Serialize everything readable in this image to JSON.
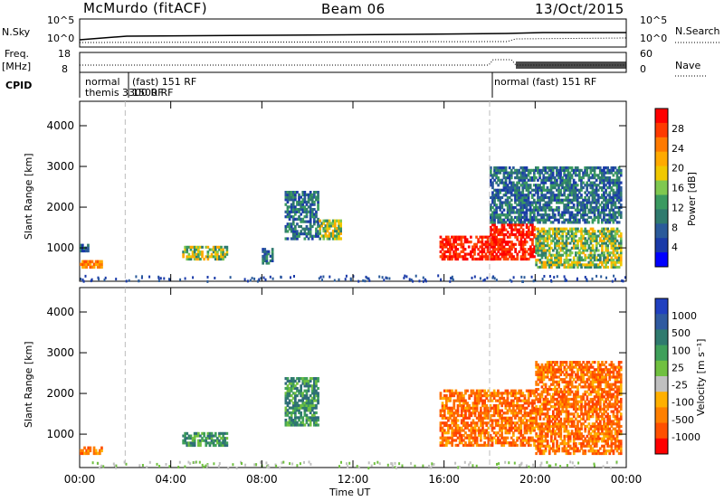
{
  "header": {
    "station": "McMurdo (fitACF)",
    "beam": "Beam 06",
    "date": "13/Oct/2015"
  },
  "top_panels": {
    "nsky_label": "N.Sky",
    "nsky_ticks": [
      "10^5",
      "10^0"
    ],
    "nsearch_label": "N.Search",
    "nsearch_ticks": [
      "10^5",
      "10^0"
    ],
    "freq_label": "Freq.",
    "freq_unit": "[MHz]",
    "freq_ticks": [
      "18",
      "8"
    ],
    "nave_label": "Nave",
    "nave_ticks": [
      "60",
      "0"
    ],
    "cpid_label": "CPID",
    "cpid_entries": [
      {
        "text": "normal",
        "row": 1,
        "at_hour": 0.1
      },
      {
        "text": "(fast) 151 RF",
        "row": 1,
        "at_hour": 2.1
      },
      {
        "text": "themis 3300 RF",
        "row": 2,
        "at_hour": 0.1
      },
      {
        "text": "1500 RF",
        "row": 2,
        "at_hour": 2.1
      },
      {
        "text": "normal (fast) 151 RF",
        "row": 1,
        "at_hour": 18.1
      }
    ]
  },
  "chart_data": [
    {
      "type": "heatmap",
      "title": "Power",
      "xlabel": "",
      "ylabel": "Slant Range [km]",
      "xlim": [
        0,
        24
      ],
      "ylim": [
        180,
        4600
      ],
      "x_ticks": [
        "00:00",
        "04:00",
        "08:00",
        "12:00",
        "16:00",
        "20:00",
        "00:00"
      ],
      "y_ticks": [
        "1000",
        "2000",
        "3000",
        "4000"
      ],
      "colorbar": {
        "label": "Power [dB]",
        "ticks": [
          "28",
          "24",
          "20",
          "16",
          "12",
          "8",
          "4"
        ],
        "colors": [
          "#ff0000",
          "#ff3a00",
          "#ff7a00",
          "#ffaa00",
          "#f0c800",
          "#7fc850",
          "#3a9a60",
          "#2f7a6e",
          "#2a5a9a",
          "#1a3aa8",
          "#0000ff"
        ]
      },
      "mode_change_lines_hours": [
        2.0,
        18.0
      ],
      "regions": [
        {
          "t": [
            0.0,
            1.0
          ],
          "r": [
            500,
            700
          ],
          "level": "high"
        },
        {
          "t": [
            0.0,
            0.4
          ],
          "r": [
            900,
            1100
          ],
          "level": "low"
        },
        {
          "t": [
            4.5,
            6.5
          ],
          "r": [
            700,
            1050
          ],
          "level": "mid"
        },
        {
          "t": [
            8.0,
            8.5
          ],
          "r": [
            600,
            1000
          ],
          "level": "low"
        },
        {
          "t": [
            9.0,
            10.5
          ],
          "r": [
            1200,
            2400
          ],
          "level": "low"
        },
        {
          "t": [
            10.5,
            11.5
          ],
          "r": [
            1200,
            1700
          ],
          "level": "mid"
        },
        {
          "t": [
            15.8,
            18.2
          ],
          "r": [
            700,
            1300
          ],
          "level": "max"
        },
        {
          "t": [
            18.0,
            20.0
          ],
          "r": [
            700,
            1600
          ],
          "level": "max"
        },
        {
          "t": [
            20.0,
            23.8
          ],
          "r": [
            500,
            1500
          ],
          "level": "mid"
        },
        {
          "t": [
            18.0,
            23.8
          ],
          "r": [
            1600,
            3000
          ],
          "level": "low"
        }
      ]
    },
    {
      "type": "heatmap",
      "title": "Velocity",
      "xlabel": "Time UT",
      "ylabel": "Slant Range [km]",
      "xlim": [
        0,
        24
      ],
      "ylim": [
        180,
        4600
      ],
      "x_ticks": [
        "00:00",
        "04:00",
        "08:00",
        "12:00",
        "16:00",
        "20:00",
        "00:00"
      ],
      "y_ticks": [
        "1000",
        "2000",
        "3000",
        "4000"
      ],
      "colorbar": {
        "label": "Velocity [m s⁻¹]",
        "ticks": [
          "1000",
          "500",
          "100",
          "25",
          "-25",
          "-100",
          "-500",
          "-1000"
        ],
        "colors": [
          "#2040c0",
          "#2f5aa0",
          "#2f7a6e",
          "#3fa05a",
          "#70c040",
          "#c0c0c0",
          "#ffb000",
          "#ff8000",
          "#ff5000",
          "#ff0000"
        ]
      },
      "mode_change_lines_hours": [
        2.0,
        18.0
      ],
      "regions": [
        {
          "t": [
            0.0,
            1.0
          ],
          "r": [
            500,
            700
          ],
          "level": "orange"
        },
        {
          "t": [
            4.5,
            6.5
          ],
          "r": [
            700,
            1050
          ],
          "level": "green"
        },
        {
          "t": [
            9.0,
            10.5
          ],
          "r": [
            1200,
            2400
          ],
          "level": "green"
        },
        {
          "t": [
            15.8,
            20.0
          ],
          "r": [
            700,
            2100
          ],
          "level": "orange"
        },
        {
          "t": [
            20.0,
            23.8
          ],
          "r": [
            500,
            2800
          ],
          "level": "orange"
        }
      ]
    }
  ]
}
